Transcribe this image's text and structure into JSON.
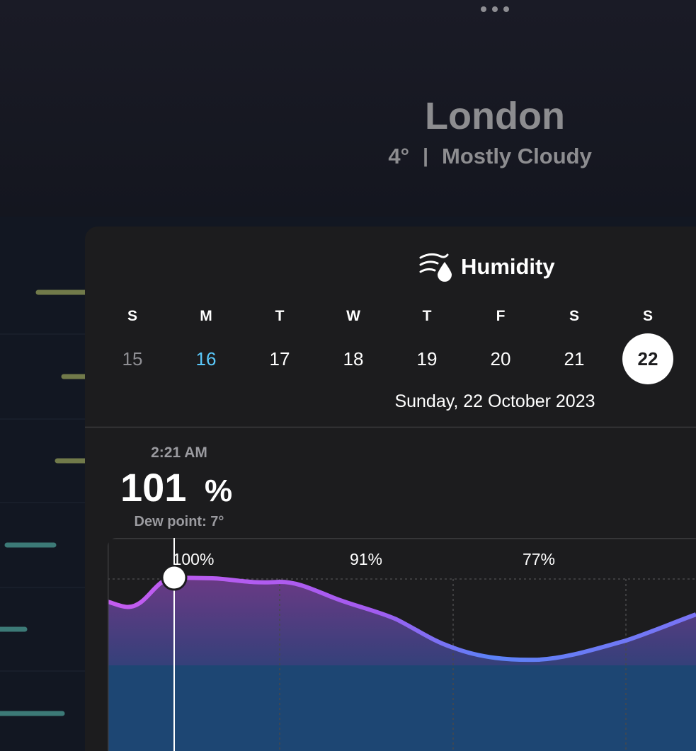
{
  "header": {
    "city": "London",
    "temperature": "4°",
    "condition": "Mostly Cloudy"
  },
  "panel": {
    "title": "Humidity",
    "days": [
      {
        "letter": "S",
        "date": "15"
      },
      {
        "letter": "M",
        "date": "16"
      },
      {
        "letter": "T",
        "date": "17"
      },
      {
        "letter": "W",
        "date": "18"
      },
      {
        "letter": "T",
        "date": "19"
      },
      {
        "letter": "F",
        "date": "20"
      },
      {
        "letter": "S",
        "date": "21"
      },
      {
        "letter": "S",
        "date": "22"
      }
    ],
    "selected_date": "Sunday, 22 October 2023",
    "reading": {
      "time": "2:21 AM",
      "value": "101",
      "unit": "%",
      "dew_point": "Dew point: 7°"
    },
    "chart_labels": [
      "100%",
      "91%",
      "77%"
    ]
  }
}
